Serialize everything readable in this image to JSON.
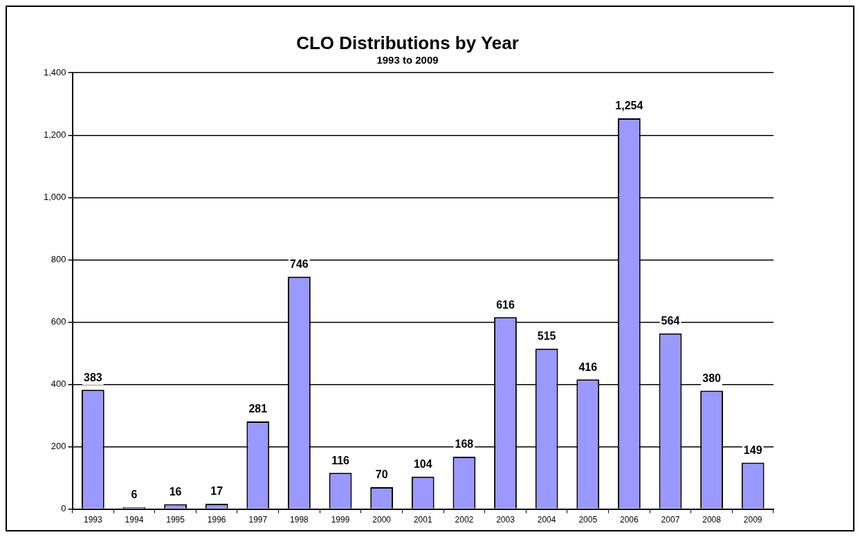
{
  "chart_data": {
    "type": "bar",
    "title": "CLO Distributions by Year",
    "subtitle": "1993 to 2009",
    "categories": [
      "1993",
      "1994",
      "1995",
      "1996",
      "1997",
      "1998",
      "1999",
      "2000",
      "2001",
      "2002",
      "2003",
      "2004",
      "2005",
      "2006",
      "2007",
      "2008",
      "2009"
    ],
    "values": [
      383,
      6,
      16,
      17,
      281,
      746,
      116,
      70,
      104,
      168,
      616,
      515,
      416,
      1254,
      564,
      380,
      149
    ],
    "color": "#9999ff",
    "ylim": [
      0,
      1400
    ],
    "yticks": [
      {
        "value": 0,
        "label": "0"
      },
      {
        "value": 200,
        "label": "200"
      },
      {
        "value": 400,
        "label": "400"
      },
      {
        "value": 600,
        "label": "600"
      },
      {
        "value": 800,
        "label": "800"
      },
      {
        "value": 1000,
        "label": "1,000"
      },
      {
        "value": 1200,
        "label": "1,200"
      },
      {
        "value": 1400,
        "label": "1,400"
      }
    ],
    "value_labels": [
      "383",
      "6",
      "16",
      "17",
      "281",
      "746",
      "116",
      "70",
      "104",
      "168",
      "616",
      "515",
      "416",
      "1,254",
      "564",
      "380",
      "149"
    ],
    "grid": "y",
    "legend": false
  }
}
